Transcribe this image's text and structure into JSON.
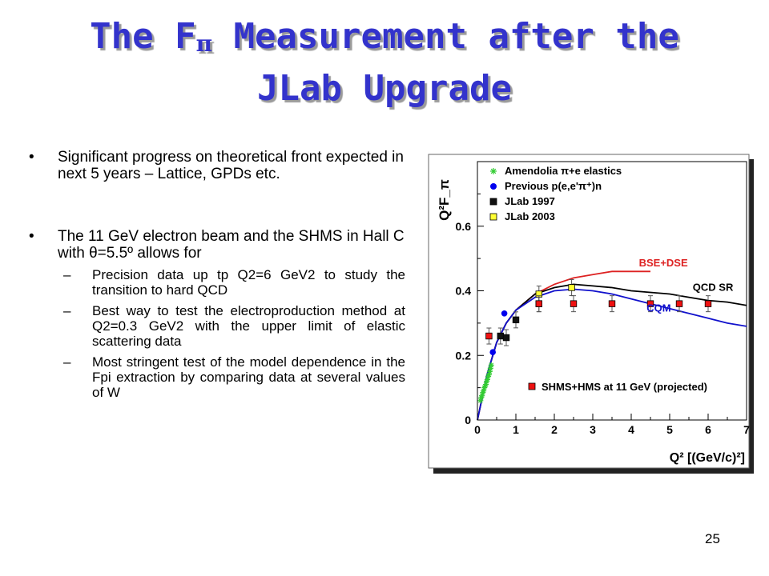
{
  "slide": {
    "title_part1": "The F",
    "title_sub": "π",
    "title_part2": " Measurement after the",
    "title_line2": "JLab Upgrade",
    "bullet1": "Significant progress on theoretical front expected in next 5 years – Lattice, GPDs etc.",
    "bullet2": "The 11 GeV electron beam and the SHMS in Hall C with θ=5.5º allows for",
    "sub_bullets": [
      "Precision data up tp Q2=6 GeV2 to study the transition to hard QCD",
      "Best way to test the electroproduction method at Q2=0.3 GeV2 with the upper limit of elastic scattering data",
      "Most stringent test of the model dependence in the Fpi extraction by comparing data at several values of W"
    ],
    "page_number": "25"
  },
  "chart_data": {
    "type": "scatter",
    "xlabel": "Q² [(GeV/c)²]",
    "ylabel": "Q²F_π",
    "xlim": [
      0,
      7
    ],
    "ylim": [
      0,
      0.8
    ],
    "x_ticks": [
      "0",
      "1",
      "2",
      "3",
      "4",
      "5",
      "6",
      "7"
    ],
    "y_ticks": [
      "0",
      "0.2",
      "0.4",
      "0.6"
    ],
    "legend_position": "top-left",
    "series": [
      {
        "name": "Amendolia π+e elastics",
        "marker": "star",
        "color": "#33cc33",
        "x": [
          0.08,
          0.1,
          0.12,
          0.14,
          0.16,
          0.18,
          0.2,
          0.22,
          0.24,
          0.26,
          0.28,
          0.3,
          0.32,
          0.34,
          0.36
        ],
        "y": [
          0.06,
          0.07,
          0.075,
          0.085,
          0.09,
          0.1,
          0.105,
          0.11,
          0.12,
          0.125,
          0.135,
          0.14,
          0.15,
          0.16,
          0.17
        ]
      },
      {
        "name": "Previous p(e,e'π⁺)n",
        "marker": "circle",
        "color": "#0000ee",
        "x": [
          0.4,
          0.7
        ],
        "y": [
          0.21,
          0.33
        ]
      },
      {
        "name": "JLab 1997",
        "marker": "square",
        "color": "#111111",
        "x": [
          0.6,
          0.75,
          1.0,
          1.6
        ],
        "y": [
          0.26,
          0.255,
          0.31,
          0.36
        ]
      },
      {
        "name": "JLab 2003",
        "marker": "square",
        "color": "#ffff33",
        "x": [
          1.6,
          2.45
        ],
        "y": [
          0.39,
          0.41
        ]
      },
      {
        "name": "SHMS+HMS at 11 GeV (projected)",
        "marker": "square",
        "color": "#ee1111",
        "x": [
          0.3,
          1.6,
          2.5,
          3.5,
          4.5,
          5.25,
          6.0
        ],
        "y": [
          0.26,
          0.36,
          0.36,
          0.36,
          0.36,
          0.36,
          0.36
        ]
      }
    ],
    "curves": [
      {
        "name": "BSE+DSE",
        "color": "#dd2222",
        "x": [
          0,
          0.25,
          0.5,
          0.75,
          1.0,
          1.5,
          2.0,
          2.5,
          3.0,
          3.5,
          4.0,
          4.5
        ],
        "y": [
          0,
          0.14,
          0.24,
          0.3,
          0.34,
          0.39,
          0.42,
          0.44,
          0.45,
          0.46,
          0.46,
          0.46
        ]
      },
      {
        "name": "QCD SR",
        "color": "#000000",
        "x": [
          0,
          0.25,
          0.5,
          0.75,
          1.0,
          1.5,
          2.0,
          2.5,
          3.0,
          3.5,
          4.0,
          4.5,
          5.0,
          5.5,
          6.0,
          6.5,
          7.0
        ],
        "y": [
          0,
          0.14,
          0.24,
          0.3,
          0.34,
          0.39,
          0.41,
          0.42,
          0.415,
          0.41,
          0.4,
          0.395,
          0.39,
          0.38,
          0.37,
          0.365,
          0.355
        ]
      },
      {
        "name": "CQM",
        "color": "#1111cc",
        "x": [
          0,
          0.25,
          0.5,
          0.75,
          1.0,
          1.5,
          2.0,
          2.5,
          3.0,
          3.5,
          4.0,
          4.5,
          5.0,
          5.5,
          6.0,
          6.5,
          7.0
        ],
        "y": [
          0,
          0.14,
          0.24,
          0.3,
          0.34,
          0.38,
          0.4,
          0.405,
          0.4,
          0.39,
          0.375,
          0.36,
          0.345,
          0.33,
          0.315,
          0.3,
          0.29
        ]
      }
    ]
  }
}
